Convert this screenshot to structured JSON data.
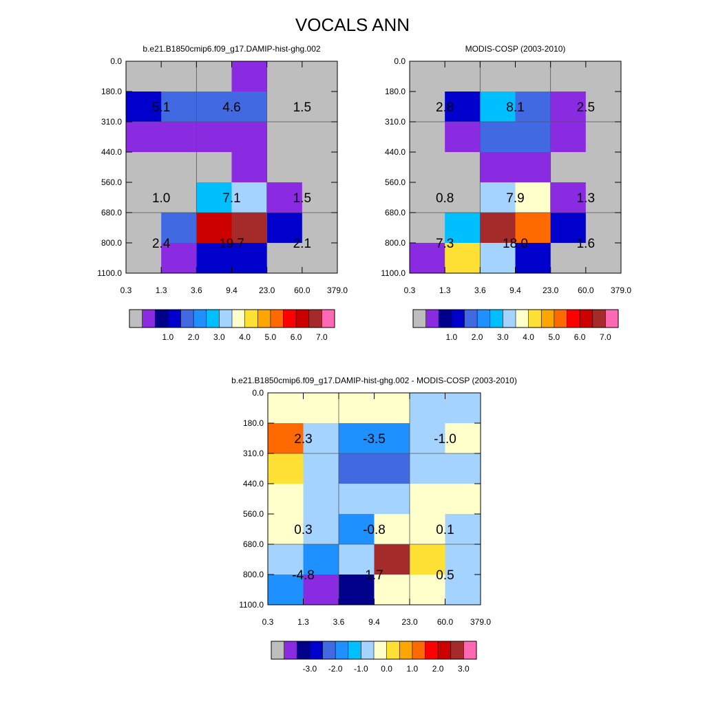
{
  "title": "VOCALS ANN",
  "chart_data": [
    {
      "type": "heatmap",
      "title": "b.e21.B1850cmip6.f09_g17.DAMIP-hist-ghg.002",
      "x_ticks": [
        "0.3",
        "1.3",
        "3.6",
        "9.4",
        "23.0",
        "60.0",
        "379.0"
      ],
      "y_ticks": [
        "0.0",
        "180.0",
        "310.0",
        "440.0",
        "560.0",
        "680.0",
        "800.0",
        "1100.0"
      ],
      "cells": [
        [
          0,
          0,
          0,
          0.8,
          0,
          0
        ],
        [
          1.6,
          2.2,
          2.2,
          2.2,
          0,
          0
        ],
        [
          0.8,
          0.8,
          0.8,
          0.8,
          0,
          0
        ],
        [
          0,
          0,
          0,
          0.8,
          0,
          0
        ],
        [
          0,
          0,
          3.0,
          3.7,
          0.8,
          0
        ],
        [
          0,
          2.2,
          6.7,
          7.2,
          1.6,
          0
        ],
        [
          0,
          0.8,
          1.6,
          1.6,
          0,
          0
        ]
      ],
      "block_values": [
        [
          "5.1",
          "4.6",
          "1.5"
        ],
        [
          "1.0",
          "7.1",
          "1.5"
        ],
        [
          "2.4",
          "19.7",
          "2.1"
        ]
      ],
      "colorbar": {
        "labels": [
          "1.0",
          "2.0",
          "3.0",
          "4.0",
          "5.0",
          "6.0",
          "7.0"
        ],
        "bounds": [
          0.5,
          1.0,
          1.5,
          2.0,
          2.5,
          3.0,
          3.5,
          4.0,
          4.5,
          5.0,
          5.5,
          6.0,
          6.5,
          7.0
        ],
        "colors": [
          "#bebebe",
          "#8a2be2",
          "#00008b",
          "#0000cd",
          "#4169e1",
          "#1e90ff",
          "#00bfff",
          "#a4d3ff",
          "#ffffcc",
          "#ffe135",
          "#ffa500",
          "#ff6a00",
          "#ff0000",
          "#cd0000",
          "#a52a2a",
          "#ff69b4"
        ]
      }
    },
    {
      "type": "heatmap",
      "title": "MODIS-COSP (2003-2010)",
      "x_ticks": [
        "0.3",
        "1.3",
        "3.6",
        "9.4",
        "23.0",
        "60.0",
        "379.0"
      ],
      "y_ticks": [
        "0.0",
        "180.0",
        "310.0",
        "440.0",
        "560.0",
        "680.0",
        "800.0",
        "1100.0"
      ],
      "cells": [
        [
          0,
          0,
          0,
          0,
          0,
          0
        ],
        [
          0,
          1.6,
          3.0,
          2.2,
          0.8,
          0
        ],
        [
          0,
          0.8,
          2.2,
          2.2,
          0.8,
          0
        ],
        [
          0,
          0,
          0.8,
          0.8,
          0,
          0
        ],
        [
          0,
          0,
          3.7,
          4.2,
          0.8,
          0
        ],
        [
          0,
          3.0,
          7.2,
          5.5,
          1.6,
          0
        ],
        [
          0.8,
          4.7,
          3.7,
          1.6,
          0,
          0
        ]
      ],
      "block_values": [
        [
          "2.8",
          "8.1",
          "2.5"
        ],
        [
          "0.8",
          "7.9",
          "1.3"
        ],
        [
          "7.3",
          "18.0",
          "1.6"
        ]
      ],
      "colorbar": {
        "labels": [
          "1.0",
          "2.0",
          "3.0",
          "4.0",
          "5.0",
          "6.0",
          "7.0"
        ],
        "bounds": [
          0.5,
          1.0,
          1.5,
          2.0,
          2.5,
          3.0,
          3.5,
          4.0,
          4.5,
          5.0,
          5.5,
          6.0,
          6.5,
          7.0
        ],
        "colors": [
          "#bebebe",
          "#8a2be2",
          "#00008b",
          "#0000cd",
          "#4169e1",
          "#1e90ff",
          "#00bfff",
          "#a4d3ff",
          "#ffffcc",
          "#ffe135",
          "#ffa500",
          "#ff6a00",
          "#ff0000",
          "#cd0000",
          "#a52a2a",
          "#ff69b4"
        ]
      }
    },
    {
      "type": "heatmap",
      "title": "b.e21.B1850cmip6.f09_g17.DAMIP-hist-ghg.002 - MODIS-COSP (2003-2010)",
      "x_ticks": [
        "0.3",
        "1.3",
        "3.6",
        "9.4",
        "23.0",
        "60.0",
        "379.0"
      ],
      "y_ticks": [
        "0.0",
        "180.0",
        "310.0",
        "440.0",
        "560.0",
        "680.0",
        "800.0",
        "1100.0"
      ],
      "cells": [
        [
          0.2,
          0.2,
          0.2,
          0.2,
          -0.2,
          -0.2
        ],
        [
          1.8,
          -0.2,
          -1.2,
          -1.2,
          -0.2,
          0.2
        ],
        [
          0.8,
          -0.2,
          -1.8,
          -1.8,
          -0.2,
          -0.2
        ],
        [
          0.2,
          -0.2,
          -0.2,
          -0.2,
          0.2,
          0.2
        ],
        [
          0.2,
          -0.2,
          -1.2,
          0.2,
          0.2,
          -0.2
        ],
        [
          -0.2,
          -1.2,
          -0.2,
          3.7,
          0.8,
          -0.2
        ],
        [
          -1.2,
          -3.2,
          -2.7,
          0.2,
          0.2,
          -0.2
        ]
      ],
      "block_values": [
        [
          "2.3",
          "-3.5",
          "-1.0"
        ],
        [
          "0.3",
          "-0.8",
          "0.1"
        ],
        [
          "-4.8",
          "1.7",
          "0.5"
        ]
      ],
      "colorbar": {
        "labels": [
          "-3.0",
          "-2.0",
          "-1.0",
          "0.0",
          "1.0",
          "2.0",
          "3.0"
        ],
        "bounds": [
          -3.5,
          -3.0,
          -2.5,
          -2.0,
          -1.5,
          -1.0,
          -0.5,
          0.0,
          0.5,
          1.0,
          1.5,
          2.0,
          2.5,
          3.0
        ],
        "colors": [
          "#bebebe",
          "#8a2be2",
          "#00008b",
          "#0000cd",
          "#4169e1",
          "#1e90ff",
          "#00bfff",
          "#a4d3ff",
          "#ffffcc",
          "#ffe135",
          "#ffa500",
          "#ff6a00",
          "#ff0000",
          "#cd0000",
          "#a52a2a",
          "#ff69b4"
        ]
      }
    }
  ]
}
